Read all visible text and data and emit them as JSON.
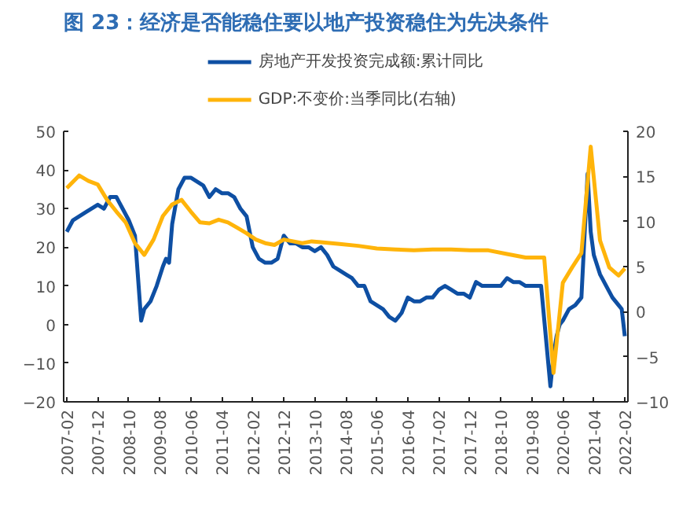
{
  "chart_data": {
    "type": "line",
    "title": "图 23：经济是否能稳住要以地产投资稳住为先决条件",
    "xlim": [
      "2007-01",
      "2022-03"
    ],
    "xticks": [
      "2007-02",
      "2007-12",
      "2008-10",
      "2009-08",
      "2010-06",
      "2011-04",
      "2012-02",
      "2012-12",
      "2013-10",
      "2014-08",
      "2015-06",
      "2016-04",
      "2017-02",
      "2017-12",
      "2018-10",
      "2019-08",
      "2020-06",
      "2021-04",
      "2022-02"
    ],
    "ylim": [
      -20,
      50
    ],
    "yticks": [
      -20,
      -10,
      0,
      10,
      20,
      30,
      40,
      50
    ],
    "y2lim": [
      -10,
      20
    ],
    "y2ticks": [
      -10,
      -5,
      0,
      5,
      10,
      15,
      20
    ],
    "grid": false,
    "legend": "top",
    "marker": "none",
    "line_style": "solid",
    "series": [
      {
        "name": "房地产开发投资完成额:累计同比",
        "color": "#0e4fa3",
        "x": [
          "2007-02",
          "2007-04",
          "2007-08",
          "2007-12",
          "2008-02",
          "2008-04",
          "2008-06",
          "2008-08",
          "2008-10",
          "2008-12",
          "2009-02",
          "2009-03",
          "2009-05",
          "2009-07",
          "2009-09",
          "2009-10",
          "2009-11",
          "2009-12",
          "2010-02",
          "2010-04",
          "2010-06",
          "2010-08",
          "2010-10",
          "2010-12",
          "2011-02",
          "2011-04",
          "2011-06",
          "2011-08",
          "2011-10",
          "2011-12",
          "2012-02",
          "2012-04",
          "2012-06",
          "2012-08",
          "2012-10",
          "2012-12",
          "2013-02",
          "2013-04",
          "2013-06",
          "2013-08",
          "2013-10",
          "2013-12",
          "2014-02",
          "2014-04",
          "2014-06",
          "2014-08",
          "2014-10",
          "2014-12",
          "2015-02",
          "2015-04",
          "2015-06",
          "2015-08",
          "2015-10",
          "2015-12",
          "2016-02",
          "2016-04",
          "2016-06",
          "2016-08",
          "2016-10",
          "2016-12",
          "2017-02",
          "2017-04",
          "2017-06",
          "2017-08",
          "2017-10",
          "2017-12",
          "2018-02",
          "2018-04",
          "2018-06",
          "2018-08",
          "2018-10",
          "2018-12",
          "2019-02",
          "2019-04",
          "2019-06",
          "2019-08",
          "2019-11",
          "2020-02",
          "2020-03",
          "2020-04",
          "2020-05",
          "2020-06",
          "2020-08",
          "2020-10",
          "2020-12",
          "2021-02",
          "2021-03",
          "2021-04",
          "2021-06",
          "2021-08",
          "2021-10",
          "2021-12",
          "2022-01",
          "2022-02"
        ],
        "values": [
          24,
          27,
          29,
          31,
          30,
          33,
          33,
          30,
          27,
          23,
          1,
          4,
          6,
          10,
          15,
          17,
          16,
          26,
          35,
          38,
          38,
          37,
          36,
          33,
          35,
          34,
          34,
          33,
          30,
          28,
          20,
          17,
          16,
          16,
          17,
          23,
          21,
          21,
          20,
          20,
          19,
          20,
          18,
          15,
          14,
          13,
          12,
          10,
          10,
          6,
          5,
          4,
          2,
          1,
          3,
          7,
          6,
          6,
          7,
          7,
          9,
          10,
          9,
          8,
          8,
          7,
          11,
          10,
          10,
          10,
          10,
          12,
          11,
          11,
          10,
          10,
          10,
          -16,
          -8,
          -3,
          0,
          1,
          4,
          5,
          7,
          39,
          24,
          18,
          13,
          10,
          7,
          5,
          4,
          -3
        ]
      },
      {
        "name": "GDP:不变价:当季同比(右轴)",
        "color": "#ffb40a",
        "axis": "y2",
        "x": [
          "2007-02",
          "2007-06",
          "2007-09",
          "2007-12",
          "2008-03",
          "2008-06",
          "2008-09",
          "2008-12",
          "2009-03",
          "2009-06",
          "2009-09",
          "2009-12",
          "2010-03",
          "2010-06",
          "2010-09",
          "2010-12",
          "2011-03",
          "2011-06",
          "2011-09",
          "2011-12",
          "2012-03",
          "2012-06",
          "2012-09",
          "2012-12",
          "2013-03",
          "2013-06",
          "2013-09",
          "2013-12",
          "2014-06",
          "2014-12",
          "2015-06",
          "2015-12",
          "2016-06",
          "2016-12",
          "2017-06",
          "2017-12",
          "2018-06",
          "2018-12",
          "2019-06",
          "2019-12",
          "2020-03",
          "2020-06",
          "2020-09",
          "2020-12",
          "2021-03",
          "2021-06",
          "2021-09",
          "2021-12",
          "2022-02"
        ],
        "values": [
          13.7,
          15.1,
          14.5,
          14.1,
          12.4,
          11.1,
          9.9,
          7.6,
          6.3,
          8.0,
          10.6,
          11.9,
          12.4,
          11.1,
          9.9,
          9.8,
          10.2,
          9.9,
          9.3,
          8.7,
          8.0,
          7.6,
          7.4,
          8.0,
          7.8,
          7.6,
          7.8,
          7.7,
          7.5,
          7.3,
          7.0,
          6.9,
          6.8,
          6.9,
          6.9,
          6.8,
          6.8,
          6.4,
          6.0,
          6.0,
          -6.8,
          3.2,
          4.9,
          6.5,
          18.3,
          7.9,
          4.9,
          4.0,
          4.8
        ]
      }
    ]
  }
}
